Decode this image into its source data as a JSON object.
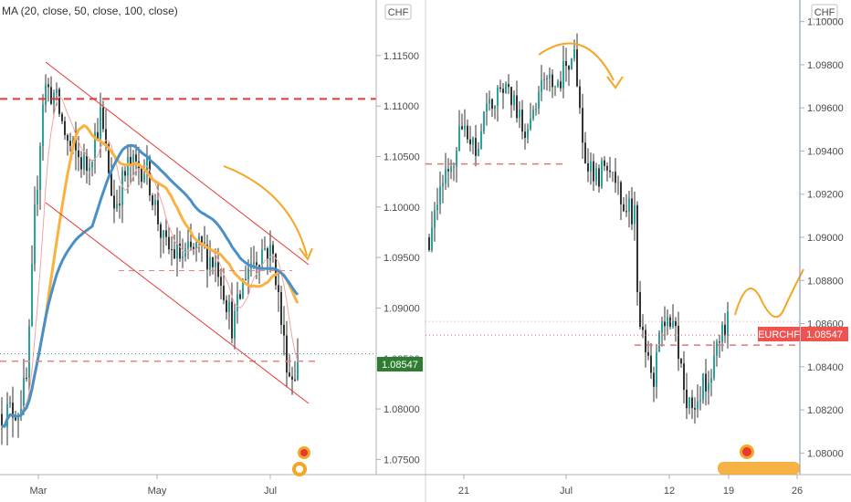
{
  "chart_data": [
    {
      "type": "candlestick",
      "title": "",
      "currency": "CHF",
      "indicator_legend": "MA (20, close, 50, close, 100, close)",
      "y_ticks": [
        "1.07500",
        "1.08000",
        "1.08500",
        "1.09000",
        "1.09500",
        "1.10000",
        "1.10500",
        "1.11000",
        "1.11500"
      ],
      "ylim": [
        1.0735,
        1.1205
      ],
      "x_labels": [
        "Mar",
        "May",
        "Jul"
      ],
      "last_price": "1.08547",
      "horizontal_levels": [
        1.1107,
        1.085,
        1.0937
      ],
      "channel_upper": [
        [
          1.115,
          1.095
        ]
      ],
      "channel_lower": [
        [
          1.105,
          1.082
        ]
      ],
      "ma_series": [
        {
          "period": 20,
          "color": "#f4a3a3"
        },
        {
          "period": 50,
          "color": "#fbb140"
        },
        {
          "period": 100,
          "color": "#4a90c8"
        }
      ],
      "colors": {
        "up": "#26a69a",
        "down": "#ef5350",
        "body": "#333333",
        "level": "#e53935",
        "arrow": "#f5a623"
      }
    },
    {
      "type": "candlestick",
      "title": "",
      "currency": "CHF",
      "symbol": "EURCHF",
      "y_ticks": [
        "1.08000",
        "1.08200",
        "1.08400",
        "1.08600",
        "1.08800",
        "1.09000",
        "1.09200",
        "1.09400",
        "1.09600",
        "1.09800",
        "1.10000"
      ],
      "ylim": [
        1.079,
        1.101
      ],
      "x_labels": [
        "21",
        "Jul",
        "12",
        "19",
        "26"
      ],
      "last_price": "1.08547",
      "horizontal_levels": [
        1.0934,
        1.085
      ],
      "colors": {
        "up": "#26a69a",
        "down": "#ef5350",
        "label_bg": "#ef5350",
        "level": "#e57373",
        "arrow": "#f5a623"
      }
    }
  ]
}
